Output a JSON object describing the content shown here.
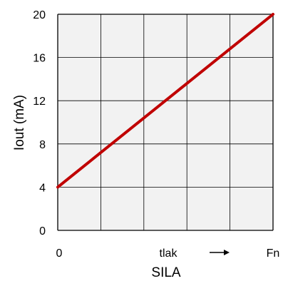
{
  "chart_data": {
    "type": "line",
    "title": "",
    "xlabel": "SILA",
    "ylabel": "Iout (mA)",
    "xticklabels": [
      "0",
      "tlak",
      "Fn"
    ],
    "yticks": [
      0,
      4,
      8,
      12,
      16,
      20
    ],
    "ylim": [
      0,
      20
    ],
    "xlim": [
      0,
      1
    ],
    "grid": true,
    "series": [
      {
        "x": [
          0,
          1
        ],
        "y": [
          4,
          20
        ],
        "color": "#c00000"
      }
    ]
  },
  "colors": {
    "plot_background": "#f2f2f2",
    "grid": "#000000",
    "line": "#c00000"
  }
}
